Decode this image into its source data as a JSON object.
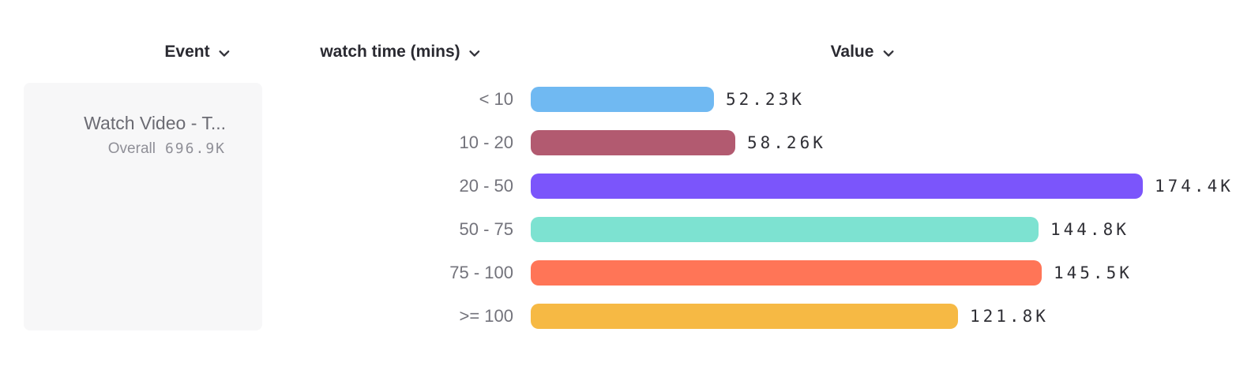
{
  "header": {
    "columns": [
      {
        "label": "Event"
      },
      {
        "label": "watch time (mins)"
      },
      {
        "label": "Value"
      }
    ]
  },
  "event_card": {
    "title": "Watch Video - T...",
    "overall_label": "Overall",
    "overall_value": "696.9K"
  },
  "chart_data": {
    "type": "bar",
    "orientation": "horizontal",
    "title": "",
    "xlabel": "Value",
    "ylabel": "watch time (mins)",
    "categories": [
      "< 10",
      "10 - 20",
      "20 - 50",
      "50 - 75",
      "75 - 100",
      ">= 100"
    ],
    "values": [
      52230,
      58260,
      174400,
      144800,
      145500,
      121800
    ],
    "value_labels": [
      "52.23K",
      "58.26K",
      "174.4K",
      "144.8K",
      "145.5K",
      "121.8K"
    ],
    "bar_colors": [
      "#70b9f2",
      "#b25a70",
      "#7b55fb",
      "#7de2d1",
      "#ff7557",
      "#f6b944"
    ],
    "max_value": 174400,
    "total_label": "Overall",
    "total_value": "696.9K",
    "grid": false,
    "legend": false
  },
  "colors": {
    "header_text": "#2a2a31",
    "category_label": "#73737b",
    "value_label": "#2f2f35",
    "card_background": "#f7f7f8",
    "card_title_text": "#6b6b73",
    "card_secondary_text": "#8f8f97"
  }
}
